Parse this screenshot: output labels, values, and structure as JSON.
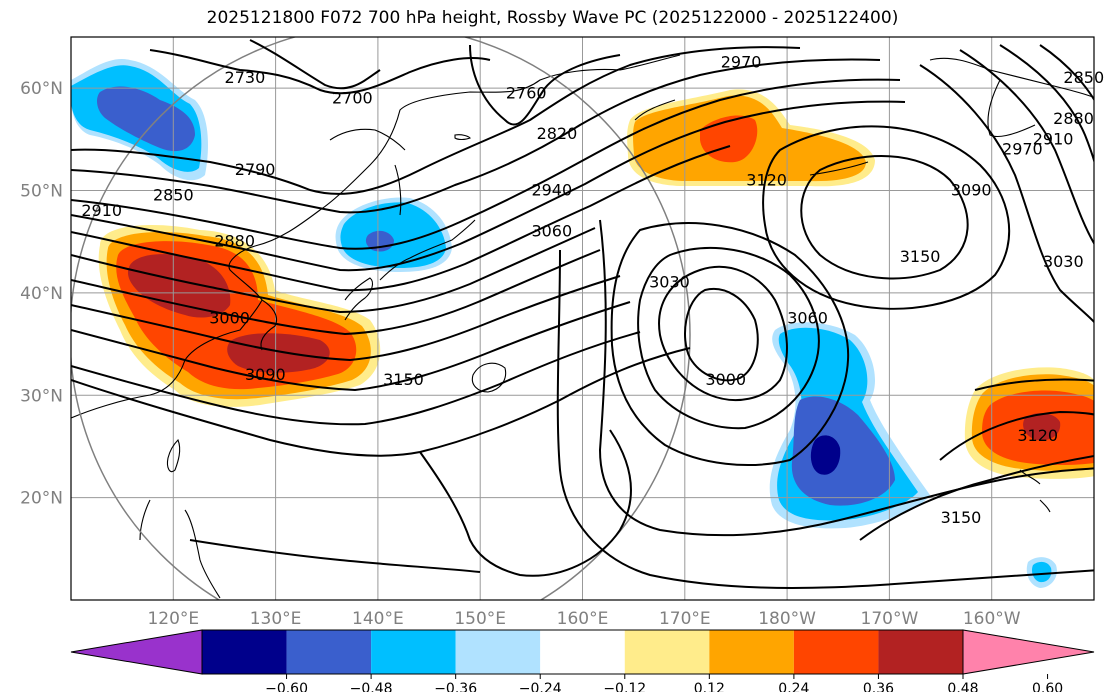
{
  "title": "2025121800 F072 700 hPa height, Rossby Wave PC (2025122000 - 2025122400)",
  "map": {
    "lon_range": [
      110,
      210
    ],
    "lat_range": [
      10,
      65
    ],
    "lon_ticks": [
      {
        "lon": 120,
        "label": "120°E"
      },
      {
        "lon": 130,
        "label": "130°E"
      },
      {
        "lon": 140,
        "label": "140°E"
      },
      {
        "lon": 150,
        "label": "150°E"
      },
      {
        "lon": 160,
        "label": "160°E"
      },
      {
        "lon": 170,
        "label": "170°E"
      },
      {
        "lon": 180,
        "label": "180°W"
      },
      {
        "lon": 190,
        "label": "170°W"
      },
      {
        "lon": 200,
        "label": "160°W"
      }
    ],
    "lat_ticks": [
      {
        "lat": 20,
        "label": "20°N"
      },
      {
        "lat": 30,
        "label": "30°N"
      },
      {
        "lat": 40,
        "label": "40°N"
      },
      {
        "lat": 50,
        "label": "50°N"
      },
      {
        "lat": 60,
        "label": "60°N"
      }
    ],
    "contour_labels": [
      {
        "text": "2730",
        "lon": 127,
        "lat": 61
      },
      {
        "text": "2700",
        "lon": 137.5,
        "lat": 59
      },
      {
        "text": "2760",
        "lon": 154.5,
        "lat": 59.5
      },
      {
        "text": "2970",
        "lon": 175.5,
        "lat": 62.5
      },
      {
        "text": "2820",
        "lon": 157.5,
        "lat": 55.5
      },
      {
        "text": "2790",
        "lon": 128,
        "lat": 52
      },
      {
        "text": "2850",
        "lon": 120,
        "lat": 49.5
      },
      {
        "text": "2910",
        "lon": 113,
        "lat": 48
      },
      {
        "text": "2940",
        "lon": 157,
        "lat": 50
      },
      {
        "text": "3060",
        "lon": 157,
        "lat": 46
      },
      {
        "text": "2880",
        "lon": 126,
        "lat": 45
      },
      {
        "text": "3000",
        "lon": 125.5,
        "lat": 37.5
      },
      {
        "text": "3090",
        "lon": 129,
        "lat": 32
      },
      {
        "text": "3150",
        "lon": 142.5,
        "lat": 31.5
      },
      {
        "text": "3030",
        "lon": 168.5,
        "lat": 41
      },
      {
        "text": "3060",
        "lon": 182,
        "lat": 37.5
      },
      {
        "text": "3000",
        "lon": 174,
        "lat": 31.5
      },
      {
        "text": "3120",
        "lon": 178,
        "lat": 51
      },
      {
        "text": "3090",
        "lon": 198,
        "lat": 50
      },
      {
        "text": "3150",
        "lon": 193,
        "lat": 43.5
      },
      {
        "text": "3030",
        "lon": 207,
        "lat": 43
      },
      {
        "text": "2910",
        "lon": 206,
        "lat": 55
      },
      {
        "text": "2970",
        "lon": 203,
        "lat": 54
      },
      {
        "text": "2880",
        "lon": 208,
        "lat": 57
      },
      {
        "text": "2850",
        "lon": 209,
        "lat": 61
      },
      {
        "text": "3120",
        "lon": 204.5,
        "lat": 26
      },
      {
        "text": "3150",
        "lon": 197,
        "lat": 18
      }
    ]
  },
  "colorbar": {
    "colors": [
      "#9932cc",
      "#00008b",
      "#3a5fcd",
      "#00bfff",
      "#b0e2ff",
      "#ffffff",
      "#ffec8b",
      "#ffa500",
      "#ff4500",
      "#b22222",
      "#ff82ab"
    ],
    "ticks": [
      "−0.60",
      "−0.48",
      "−0.36",
      "−0.24",
      "−0.12",
      "0.12",
      "0.24",
      "0.36",
      "0.48",
      "0.60"
    ]
  }
}
